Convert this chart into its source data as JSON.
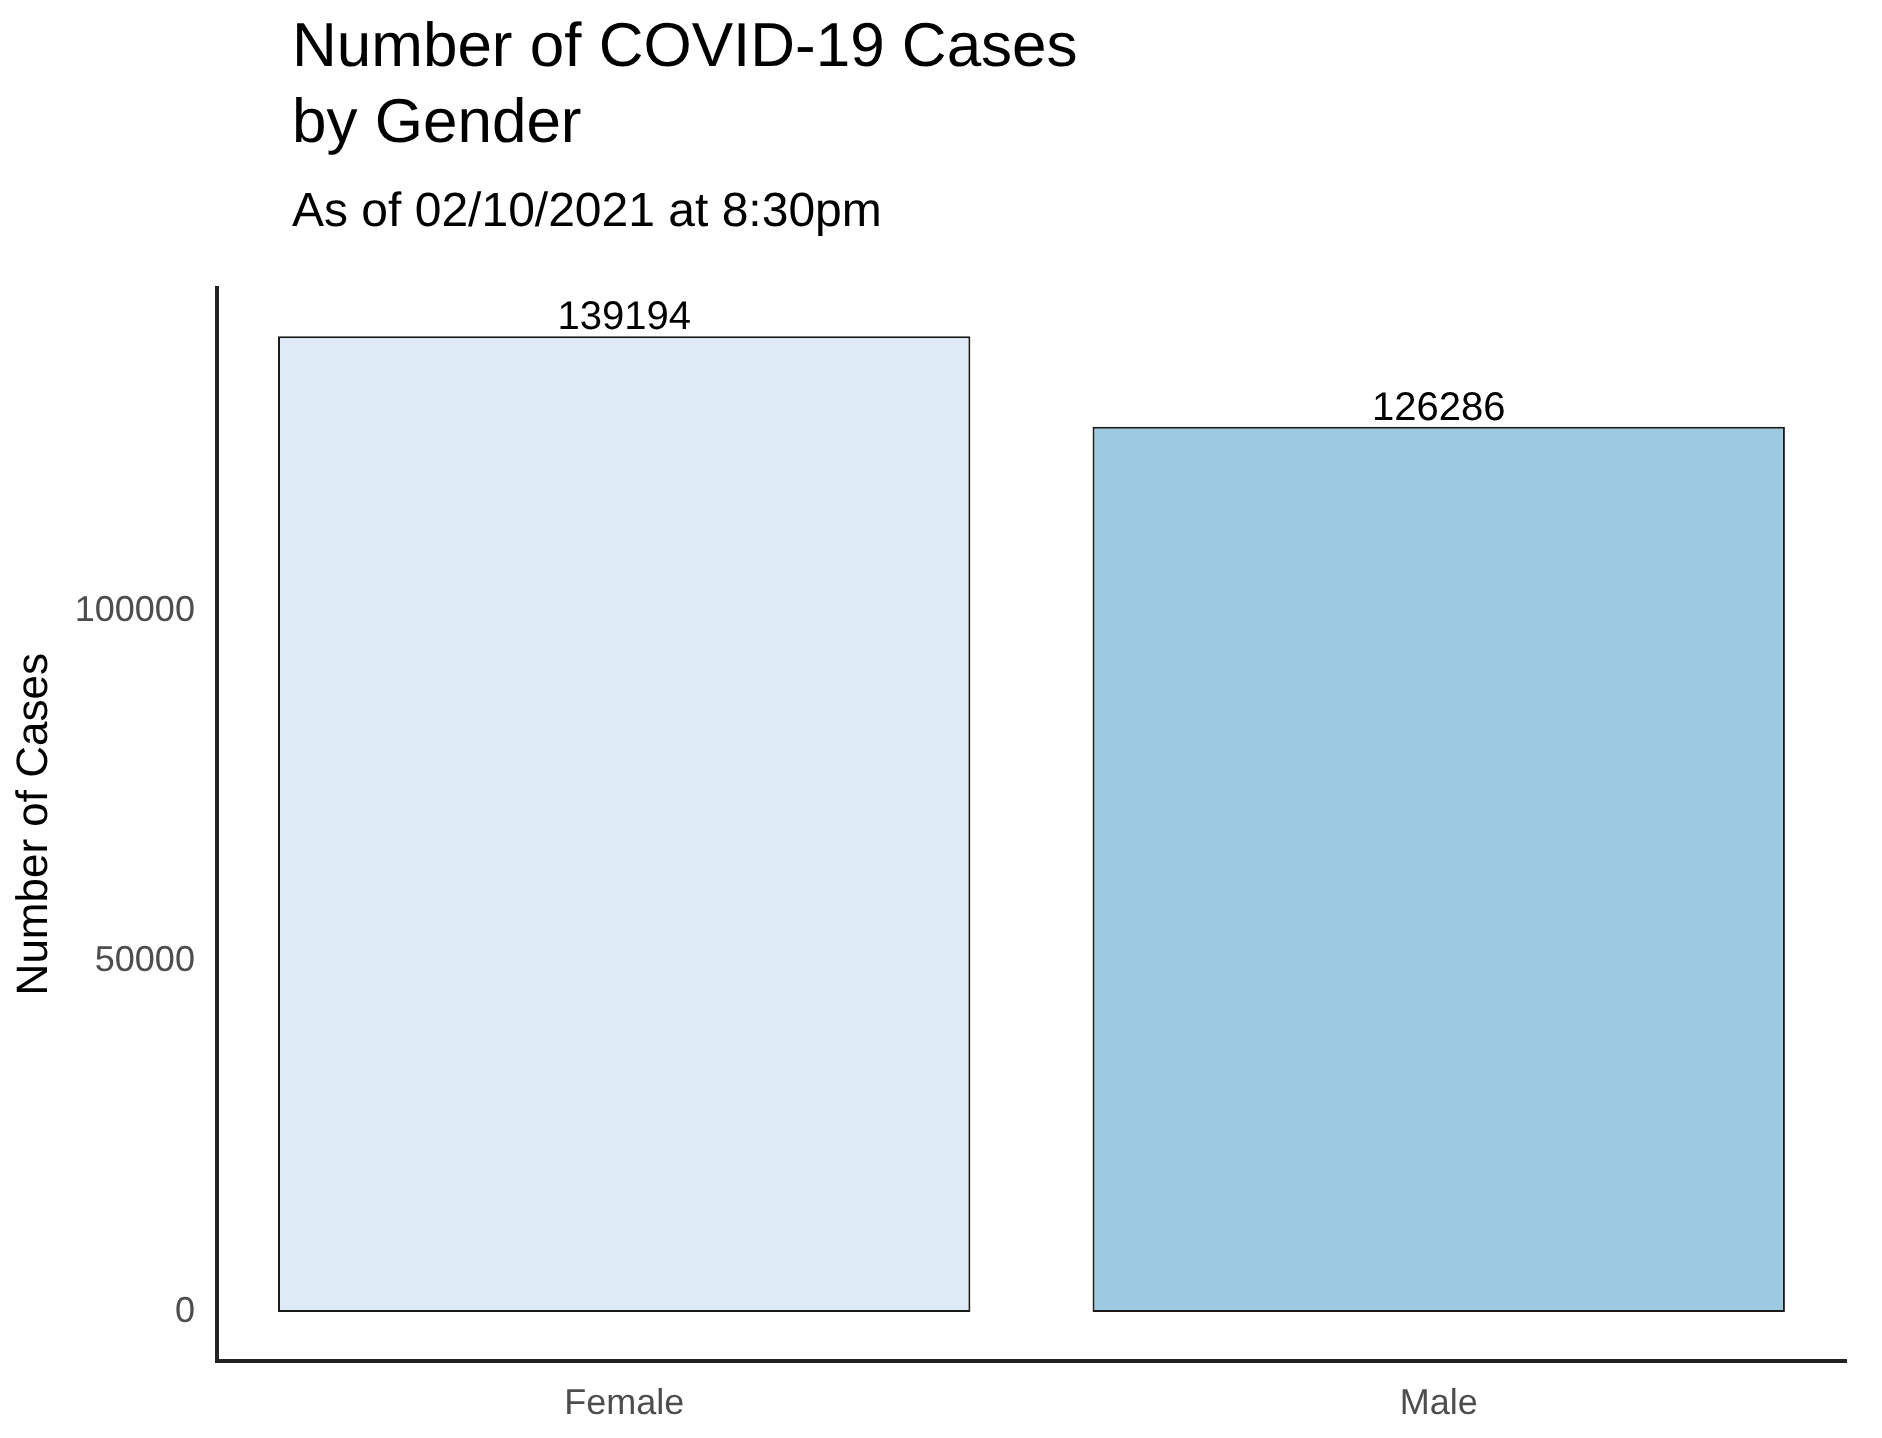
{
  "chart_data": {
    "type": "bar",
    "title": "Number of COVID-19 Cases by Gender",
    "subtitle": "As of 02/10/2021 at 8:30pm",
    "ylabel": "Number of Cases",
    "categories": [
      "Female",
      "Male"
    ],
    "series": [
      {
        "colors": [
          "#deebf7",
          "#9ecae1"
        ],
        "values": [
          139194,
          126286
        ]
      }
    ],
    "ylim": [
      -6960,
      146150
    ],
    "yticks": [
      0,
      50000,
      100000
    ],
    "data_labels": true,
    "grid": false,
    "legend": false
  }
}
